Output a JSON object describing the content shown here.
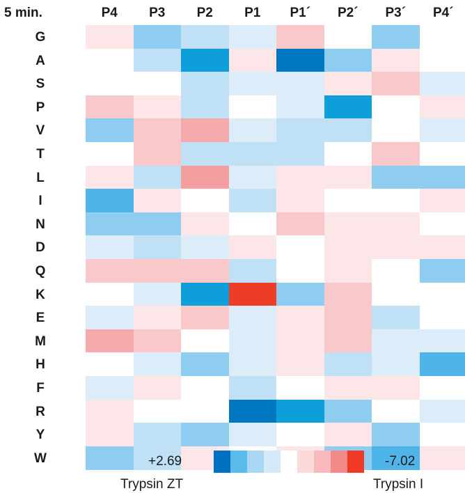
{
  "chart_data": {
    "type": "heatmap",
    "corner_label": "5 min.",
    "columns": [
      "P4",
      "P3",
      "P2",
      "P1",
      "P1´",
      "P2´",
      "P3´",
      "P4´"
    ],
    "rows": [
      "G",
      "A",
      "S",
      "P",
      "V",
      "T",
      "L",
      "I",
      "N",
      "D",
      "Q",
      "K",
      "E",
      "M",
      "H",
      "F",
      "R",
      "Y",
      "W"
    ],
    "values": [
      [
        -1,
        3,
        2,
        1,
        -2,
        0,
        3,
        0
      ],
      [
        0,
        2,
        6,
        -1,
        7,
        3,
        -1,
        0
      ],
      [
        0,
        0,
        2,
        1,
        1,
        -1,
        -2,
        1
      ],
      [
        -2,
        -1,
        2,
        0,
        1,
        6,
        0,
        -1
      ],
      [
        3,
        -2,
        -3,
        1,
        2,
        2,
        0,
        1
      ],
      [
        0,
        -2,
        2,
        2,
        2,
        0,
        -2,
        0
      ],
      [
        -1,
        2,
        -4,
        1,
        -1,
        -1,
        3,
        3
      ],
      [
        4,
        -1,
        0,
        2,
        -1,
        0,
        0,
        -1
      ],
      [
        3,
        3,
        -1,
        0,
        -2,
        -1,
        -1,
        0
      ],
      [
        1,
        2,
        1,
        -1,
        0,
        -1,
        -1,
        -1
      ],
      [
        -2,
        -2,
        -2,
        2,
        0,
        -1,
        0,
        3
      ],
      [
        0,
        1,
        6,
        -9,
        3,
        -2,
        0,
        0
      ],
      [
        1,
        -1,
        -2,
        1,
        -1,
        -2,
        2,
        0
      ],
      [
        -3,
        -2,
        0,
        1,
        -1,
        -2,
        1,
        1
      ],
      [
        0,
        1,
        3,
        1,
        -1,
        2,
        1,
        4
      ],
      [
        1,
        -1,
        0,
        2,
        0,
        -1,
        -1,
        0
      ],
      [
        -1,
        0,
        0,
        7,
        6,
        3,
        0,
        1
      ],
      [
        -1,
        2,
        3,
        1,
        0,
        -1,
        3,
        0
      ],
      [
        3,
        2,
        -1,
        0,
        -1,
        3,
        4,
        -1
      ]
    ],
    "colorscale": {
      "blues": [
        "#0070c0",
        "#5bbbea",
        "#a9d7f3",
        "#d4eaf8"
      ],
      "neutral": "#ffffff",
      "reds": [
        "#fbd9db",
        "#f7b9bb",
        "#f28a8a",
        "#ef3b25"
      ]
    },
    "legend": {
      "left_value": "+2.69",
      "right_value": "-7.02",
      "left_label": "Trypsin ZT",
      "right_label": "Trypsin I"
    }
  }
}
